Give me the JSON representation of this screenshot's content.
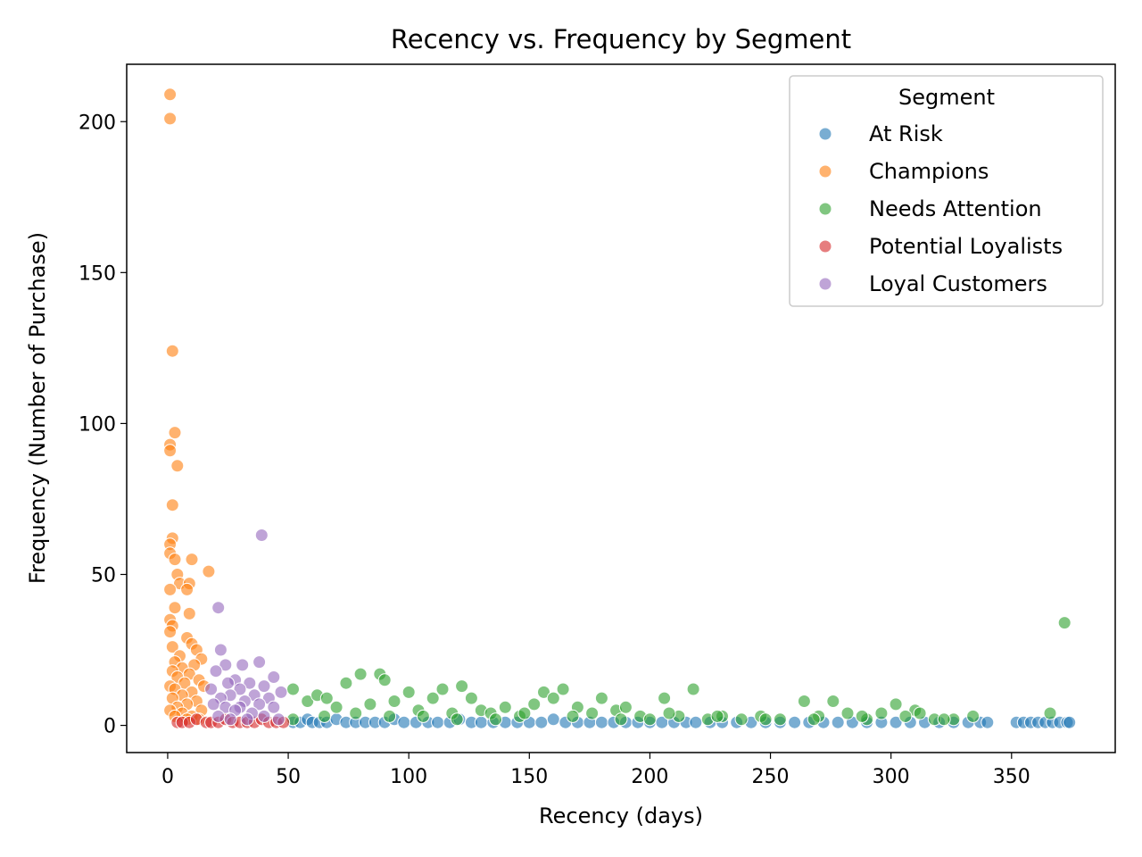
{
  "chart_data": {
    "type": "scatter",
    "title": "Recency vs. Frequency by Segment",
    "xlabel": "Recency (days)",
    "ylabel": "Frequency (Number of Purchase)",
    "xlim": [
      -17,
      393
    ],
    "ylim": [
      -9,
      219
    ],
    "xticks": [
      0,
      50,
      100,
      150,
      200,
      250,
      300,
      350
    ],
    "yticks": [
      0,
      50,
      100,
      150,
      200
    ],
    "grid": false,
    "legend": {
      "title": "Segment",
      "placement": "top-right"
    },
    "series": [
      {
        "name": "At Risk",
        "color": "#1f77b4",
        "points": [
          [
            52,
            1
          ],
          [
            55,
            1
          ],
          [
            58,
            2
          ],
          [
            60,
            1
          ],
          [
            63,
            1
          ],
          [
            66,
            1
          ],
          [
            70,
            2
          ],
          [
            74,
            1
          ],
          [
            78,
            1
          ],
          [
            82,
            1
          ],
          [
            86,
            1
          ],
          [
            90,
            1
          ],
          [
            94,
            2
          ],
          [
            98,
            1
          ],
          [
            103,
            1
          ],
          [
            108,
            1
          ],
          [
            112,
            1
          ],
          [
            117,
            1
          ],
          [
            121,
            2
          ],
          [
            126,
            1
          ],
          [
            130,
            1
          ],
          [
            135,
            1
          ],
          [
            140,
            1
          ],
          [
            145,
            1
          ],
          [
            150,
            1
          ],
          [
            155,
            1
          ],
          [
            160,
            2
          ],
          [
            165,
            1
          ],
          [
            170,
            1
          ],
          [
            175,
            1
          ],
          [
            180,
            1
          ],
          [
            185,
            1
          ],
          [
            190,
            1
          ],
          [
            195,
            1
          ],
          [
            200,
            1
          ],
          [
            205,
            1
          ],
          [
            210,
            1
          ],
          [
            215,
            1
          ],
          [
            219,
            1
          ],
          [
            225,
            1
          ],
          [
            230,
            1
          ],
          [
            236,
            1
          ],
          [
            242,
            1
          ],
          [
            248,
            1
          ],
          [
            254,
            1
          ],
          [
            260,
            1
          ],
          [
            266,
            1
          ],
          [
            272,
            1
          ],
          [
            278,
            1
          ],
          [
            284,
            1
          ],
          [
            290,
            1
          ],
          [
            296,
            1
          ],
          [
            302,
            1
          ],
          [
            308,
            1
          ],
          [
            314,
            1
          ],
          [
            320,
            1
          ],
          [
            326,
            1
          ],
          [
            332,
            1
          ],
          [
            337,
            1
          ],
          [
            340,
            1
          ],
          [
            352,
            1
          ],
          [
            355,
            1
          ],
          [
            358,
            1
          ],
          [
            361,
            1
          ],
          [
            364,
            1
          ],
          [
            367,
            1
          ],
          [
            370,
            1
          ],
          [
            373,
            1
          ],
          [
            374,
            1
          ]
        ]
      },
      {
        "name": "Champions",
        "color": "#ff7f0e",
        "points": [
          [
            1,
            209
          ],
          [
            1,
            201
          ],
          [
            2,
            124
          ],
          [
            3,
            97
          ],
          [
            1,
            93
          ],
          [
            1,
            91
          ],
          [
            4,
            86
          ],
          [
            2,
            73
          ],
          [
            2,
            62
          ],
          [
            1,
            60
          ],
          [
            1,
            57
          ],
          [
            3,
            55
          ],
          [
            10,
            55
          ],
          [
            17,
            51
          ],
          [
            4,
            50
          ],
          [
            5,
            47
          ],
          [
            9,
            47
          ],
          [
            8,
            45
          ],
          [
            1,
            45
          ],
          [
            3,
            39
          ],
          [
            9,
            37
          ],
          [
            1,
            35
          ],
          [
            2,
            33
          ],
          [
            1,
            31
          ],
          [
            8,
            29
          ],
          [
            10,
            27
          ],
          [
            2,
            26
          ],
          [
            12,
            25
          ],
          [
            5,
            23
          ],
          [
            14,
            22
          ],
          [
            3,
            21
          ],
          [
            11,
            20
          ],
          [
            6,
            19
          ],
          [
            2,
            18
          ],
          [
            9,
            17
          ],
          [
            4,
            16
          ],
          [
            13,
            15
          ],
          [
            7,
            14
          ],
          [
            1,
            13
          ],
          [
            15,
            13
          ],
          [
            3,
            12
          ],
          [
            10,
            11
          ],
          [
            6,
            10
          ],
          [
            2,
            9
          ],
          [
            12,
            8
          ],
          [
            8,
            7
          ],
          [
            4,
            6
          ],
          [
            14,
            5
          ],
          [
            1,
            5
          ],
          [
            6,
            4
          ],
          [
            10,
            3
          ],
          [
            3,
            3
          ],
          [
            8,
            2
          ],
          [
            13,
            2
          ]
        ]
      },
      {
        "name": "Needs Attention",
        "color": "#2ca02c",
        "points": [
          [
            372,
            34
          ],
          [
            52,
            12
          ],
          [
            58,
            8
          ],
          [
            62,
            10
          ],
          [
            66,
            9
          ],
          [
            70,
            6
          ],
          [
            74,
            14
          ],
          [
            80,
            17
          ],
          [
            84,
            7
          ],
          [
            88,
            17
          ],
          [
            90,
            15
          ],
          [
            94,
            8
          ],
          [
            100,
            11
          ],
          [
            104,
            5
          ],
          [
            110,
            9
          ],
          [
            114,
            12
          ],
          [
            118,
            4
          ],
          [
            122,
            13
          ],
          [
            126,
            9
          ],
          [
            130,
            5
          ],
          [
            134,
            4
          ],
          [
            140,
            6
          ],
          [
            146,
            3
          ],
          [
            152,
            7
          ],
          [
            156,
            11
          ],
          [
            160,
            9
          ],
          [
            164,
            12
          ],
          [
            170,
            6
          ],
          [
            176,
            4
          ],
          [
            180,
            9
          ],
          [
            186,
            5
          ],
          [
            190,
            6
          ],
          [
            196,
            3
          ],
          [
            200,
            2
          ],
          [
            206,
            9
          ],
          [
            212,
            3
          ],
          [
            218,
            12
          ],
          [
            224,
            2
          ],
          [
            230,
            3
          ],
          [
            238,
            2
          ],
          [
            246,
            3
          ],
          [
            254,
            2
          ],
          [
            264,
            8
          ],
          [
            270,
            3
          ],
          [
            276,
            8
          ],
          [
            282,
            4
          ],
          [
            290,
            2
          ],
          [
            296,
            4
          ],
          [
            302,
            7
          ],
          [
            310,
            5
          ],
          [
            312,
            4
          ],
          [
            318,
            2
          ],
          [
            326,
            2
          ],
          [
            334,
            3
          ],
          [
            366,
            4
          ],
          [
            52,
            2
          ],
          [
            65,
            3
          ],
          [
            78,
            4
          ],
          [
            92,
            3
          ],
          [
            106,
            3
          ],
          [
            120,
            2
          ],
          [
            136,
            2
          ],
          [
            148,
            4
          ],
          [
            168,
            3
          ],
          [
            188,
            2
          ],
          [
            208,
            4
          ],
          [
            228,
            3
          ],
          [
            248,
            2
          ],
          [
            268,
            2
          ],
          [
            288,
            3
          ],
          [
            306,
            3
          ],
          [
            322,
            2
          ]
        ]
      },
      {
        "name": "Potential Loyalists",
        "color": "#d62728",
        "points": [
          [
            4,
            1
          ],
          [
            6,
            1
          ],
          [
            9,
            1
          ],
          [
            12,
            2
          ],
          [
            16,
            1
          ],
          [
            18,
            1
          ],
          [
            21,
            1
          ],
          [
            24,
            2
          ],
          [
            27,
            1
          ],
          [
            30,
            1
          ],
          [
            33,
            1
          ],
          [
            36,
            1
          ],
          [
            39,
            2
          ],
          [
            42,
            1
          ],
          [
            45,
            1
          ],
          [
            48,
            1
          ]
        ]
      },
      {
        "name": "Loyal Customers",
        "color": "#9467bd",
        "points": [
          [
            39,
            63
          ],
          [
            21,
            39
          ],
          [
            22,
            25
          ],
          [
            38,
            21
          ],
          [
            24,
            20
          ],
          [
            31,
            20
          ],
          [
            20,
            18
          ],
          [
            44,
            16
          ],
          [
            28,
            15
          ],
          [
            34,
            14
          ],
          [
            25,
            14
          ],
          [
            40,
            13
          ],
          [
            18,
            12
          ],
          [
            30,
            12
          ],
          [
            47,
            11
          ],
          [
            26,
            10
          ],
          [
            36,
            10
          ],
          [
            22,
            9
          ],
          [
            42,
            9
          ],
          [
            32,
            8
          ],
          [
            19,
            7
          ],
          [
            38,
            7
          ],
          [
            24,
            6
          ],
          [
            30,
            6
          ],
          [
            44,
            6
          ],
          [
            28,
            5
          ],
          [
            35,
            4
          ],
          [
            21,
            3
          ],
          [
            40,
            3
          ],
          [
            33,
            2
          ],
          [
            46,
            2
          ],
          [
            26,
            2
          ]
        ]
      }
    ]
  }
}
